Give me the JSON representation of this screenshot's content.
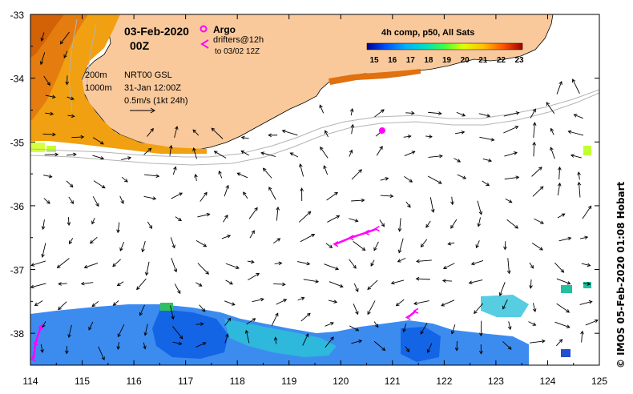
{
  "map": {
    "date": "03-Feb-2020",
    "hour": "00Z",
    "composite_title": "4h comp, p50, All Sats",
    "colorbar_ticks": [
      "15",
      "16",
      "17",
      "18",
      "19",
      "20",
      "21",
      "22",
      "23"
    ],
    "colorbar_range": [
      15,
      23
    ],
    "colors": {
      "land": "#fac99b",
      "argo": "#ff00ff",
      "drifter": "#ff00ff",
      "contour": "#b4b4b4",
      "coast": "#000000"
    },
    "legend": {
      "argo_label": "Argo",
      "drifters_label": "drifters@12h",
      "drifters_sub": "to 03/02 12Z",
      "isobath_shallow": "200m",
      "isobath_deep": "1000m",
      "product": "NRT00 GSL",
      "product_time": "31-Jan 12:00Z",
      "scale": "0.5m/s (1kt 24h)"
    },
    "lon_ticks": [
      "114",
      "115",
      "116",
      "117",
      "118",
      "119",
      "120",
      "121",
      "122",
      "123",
      "124",
      "125"
    ],
    "lat_ticks": [
      "-33",
      "-34",
      "-35",
      "-36",
      "-37",
      "-38"
    ],
    "lon_range": [
      114,
      125
    ],
    "lat_range": [
      -38.5,
      -33
    ],
    "argo_float": {
      "lon": 120.8,
      "lat": -34.82
    },
    "drifter_tracks": [
      [
        [
          119.9,
          -36.6
        ],
        [
          120.2,
          -36.5
        ],
        [
          120.5,
          -36.42
        ],
        [
          120.7,
          -36.36
        ]
      ],
      [
        [
          114.2,
          -37.9
        ],
        [
          114.1,
          -38.15
        ],
        [
          114.05,
          -38.4
        ]
      ],
      [
        [
          121.3,
          -37.75
        ],
        [
          121.45,
          -37.65
        ]
      ]
    ],
    "credit": "© IMOS 05-Feb-2020 01:08 Hobart"
  }
}
